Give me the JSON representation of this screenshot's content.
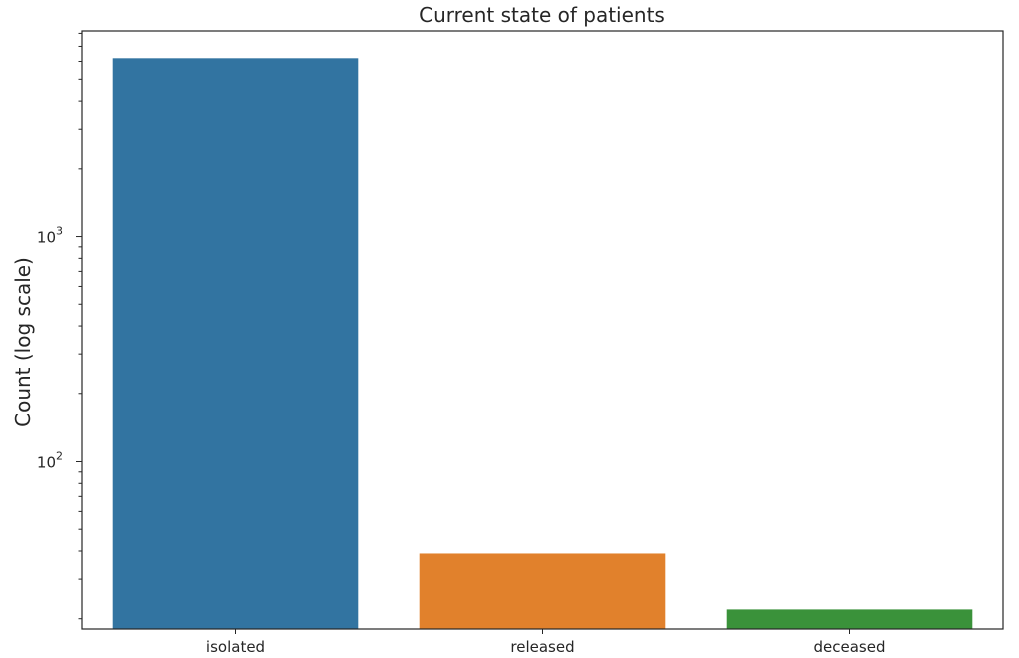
{
  "chart_data": {
    "type": "bar",
    "title": "Current state of patients",
    "xlabel": "",
    "ylabel": "Count (log scale)",
    "yscale": "log",
    "ylim": [
      18,
      8200
    ],
    "yticks": [
      {
        "value": 100,
        "base": "10",
        "exp": "2"
      },
      {
        "value": 1000,
        "base": "10",
        "exp": "3"
      }
    ],
    "categories": [
      "isolated",
      "released",
      "deceased"
    ],
    "values": [
      6200,
      39,
      22
    ],
    "colors": [
      "#3274a1",
      "#e1812c",
      "#3a923a"
    ],
    "grid": false
  }
}
